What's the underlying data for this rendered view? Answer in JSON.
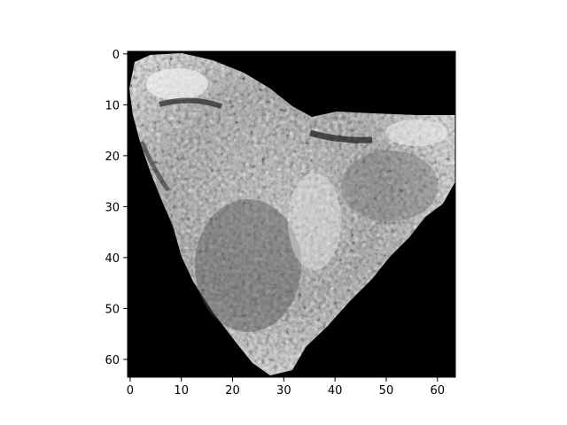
{
  "figure": {
    "image_description_icon": "grayscale-heart-shaped-texture-image",
    "colormap": "gray",
    "background_color": "#ffffff",
    "frame_color": "#000000"
  },
  "axes": {
    "x": {
      "range": [
        -0.5,
        63.5
      ],
      "ticks": [
        0,
        10,
        20,
        30,
        40,
        50,
        60
      ],
      "tick_labels": [
        "0",
        "10",
        "20",
        "30",
        "40",
        "50",
        "60"
      ]
    },
    "y": {
      "range": [
        -0.5,
        63.5
      ],
      "inverted": true,
      "ticks": [
        0,
        10,
        20,
        30,
        40,
        50,
        60
      ],
      "tick_labels": [
        "0",
        "10",
        "20",
        "30",
        "40",
        "50",
        "60"
      ]
    }
  }
}
